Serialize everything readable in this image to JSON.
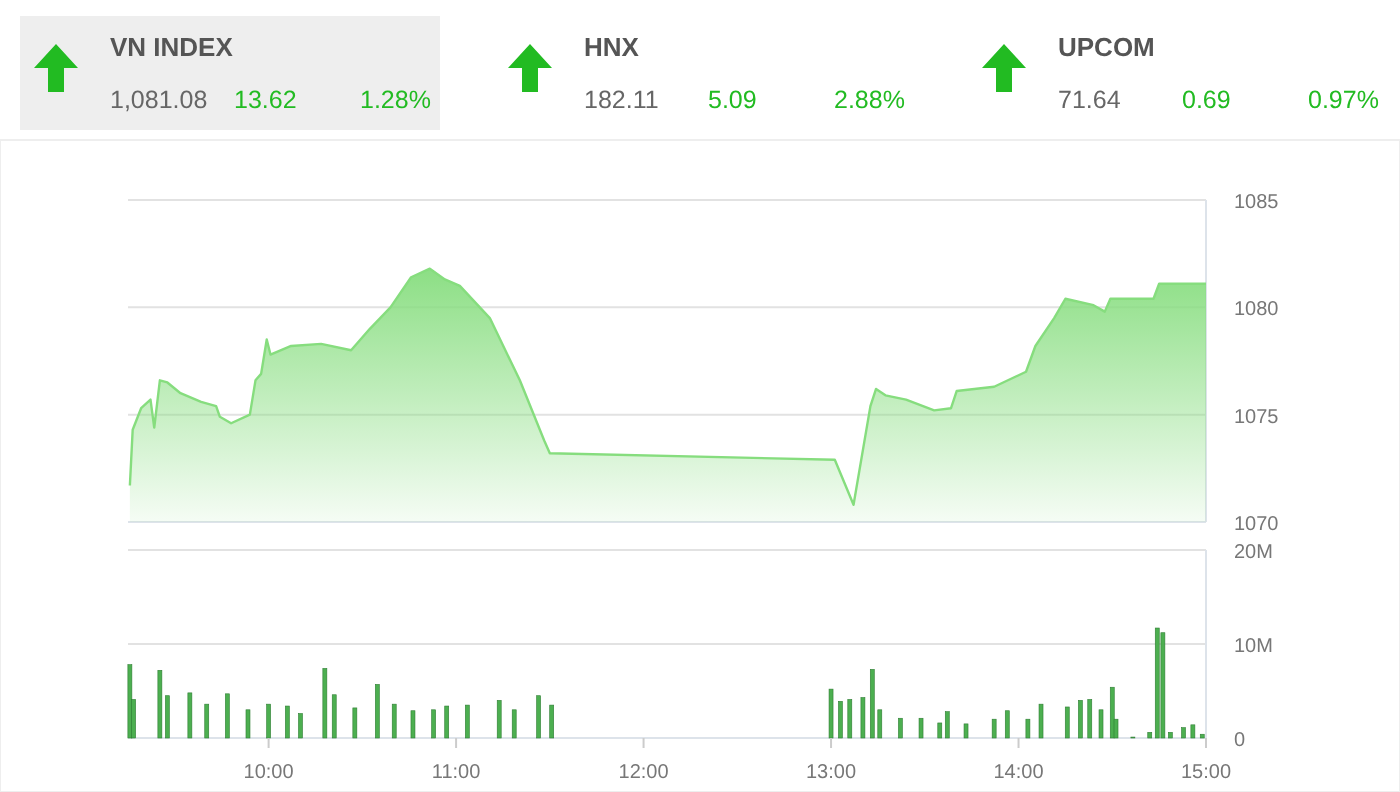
{
  "chart_data": [
    {
      "type": "other",
      "annotations": [
        "VN INDEX",
        "1,081.08",
        "13.62",
        "1.28%",
        "HNX",
        "182.11",
        "5.09",
        "2.88%",
        "UPCOM",
        "71.64",
        "0.69",
        "0.97%"
      ]
    },
    {
      "type": "area",
      "xlim": [
        9.25,
        15
      ],
      "ylim": [
        1070,
        1085
      ],
      "yticks": [
        1070,
        1075,
        1080,
        1085
      ],
      "grid": "y",
      "tick_labels": "y",
      "series": [
        {
          "color": "#86dd7e",
          "x": [
            9.26,
            9.275,
            9.32,
            9.37,
            9.39,
            9.42,
            9.46,
            9.53,
            9.64,
            9.72,
            9.74,
            9.8,
            9.9,
            9.93,
            9.96,
            9.99,
            10.01,
            10.12,
            10.28,
            10.44,
            10.54,
            10.65,
            10.76,
            10.86,
            10.94,
            11.02,
            11.18,
            11.34,
            11.47,
            11.5,
            13.02,
            13.12,
            13.21,
            13.24,
            13.29,
            13.4,
            13.55,
            13.64,
            13.67,
            13.87,
            14.04,
            14.09,
            14.19,
            14.25,
            14.4,
            14.46,
            14.49,
            14.72,
            14.75,
            15
          ],
          "values": [
            1071.7,
            1074.3,
            1075.3,
            1075.7,
            1074.4,
            1076.6,
            1076.5,
            1076,
            1075.6,
            1075.4,
            1074.9,
            1074.6,
            1075,
            1076.6,
            1076.9,
            1078.5,
            1077.8,
            1078.2,
            1078.3,
            1078,
            1079,
            1080,
            1081.4,
            1081.8,
            1081.3,
            1081,
            1079.5,
            1076.6,
            1073.8,
            1073.2,
            1072.9,
            1070.8,
            1075.4,
            1076.2,
            1075.9,
            1075.7,
            1075.2,
            1075.3,
            1076.1,
            1076.3,
            1077,
            1078.2,
            1079.5,
            1080.4,
            1080.1,
            1079.8,
            1080.4,
            1080.4,
            1081.1,
            1081.1
          ]
        }
      ]
    },
    {
      "type": "bar",
      "xlim": [
        9.25,
        15
      ],
      "xticks": [
        {
          "value": 10,
          "label": "10:00"
        },
        {
          "value": 11,
          "label": "11:00"
        },
        {
          "value": 12,
          "label": "12:00"
        },
        {
          "value": 13,
          "label": "13:00"
        },
        {
          "value": 14,
          "label": "14:00"
        },
        {
          "value": 15,
          "label": "15:00"
        }
      ],
      "ylim": [
        0,
        20
      ],
      "yticks": [
        0,
        {
          "value": 10,
          "label": "10M"
        },
        {
          "value": 20,
          "label": "20M"
        }
      ],
      "grid": "y",
      "series": [
        {
          "color": "#4caf50",
          "x": [
            9.26,
            9.28,
            9.42,
            9.46,
            9.58,
            9.67,
            9.78,
            9.89,
            10,
            10.1,
            10.17,
            10.3,
            10.35,
            10.46,
            10.58,
            10.67,
            10.77,
            10.88,
            10.95,
            11.06,
            11.23,
            11.31,
            11.44,
            11.51,
            13,
            13.05,
            13.1,
            13.17,
            13.22,
            13.26,
            13.37,
            13.48,
            13.58,
            13.62,
            13.72,
            13.87,
            13.94,
            14.05,
            14.12,
            14.26,
            14.33,
            14.38,
            14.44,
            14.5,
            14.52,
            14.61,
            14.7,
            14.74,
            14.77,
            14.81,
            14.88,
            14.93,
            14.98
          ],
          "values": [
            7.8,
            4.1,
            7.2,
            4.5,
            4.8,
            3.6,
            4.7,
            3,
            3.6,
            3.4,
            2.6,
            7.4,
            4.6,
            3.2,
            5.7,
            3.6,
            2.9,
            3,
            3.4,
            3.5,
            4,
            3,
            4.5,
            3.5,
            5.2,
            3.9,
            4.1,
            4.3,
            7.3,
            3,
            2.1,
            2.1,
            1.6,
            2.8,
            1.5,
            2,
            2.9,
            2,
            3.6,
            3.3,
            4,
            4.1,
            3,
            5.4,
            2,
            0.1,
            0.6,
            11.7,
            11.2,
            0.6,
            1.1,
            1.4,
            0.4
          ]
        }
      ]
    }
  ]
}
